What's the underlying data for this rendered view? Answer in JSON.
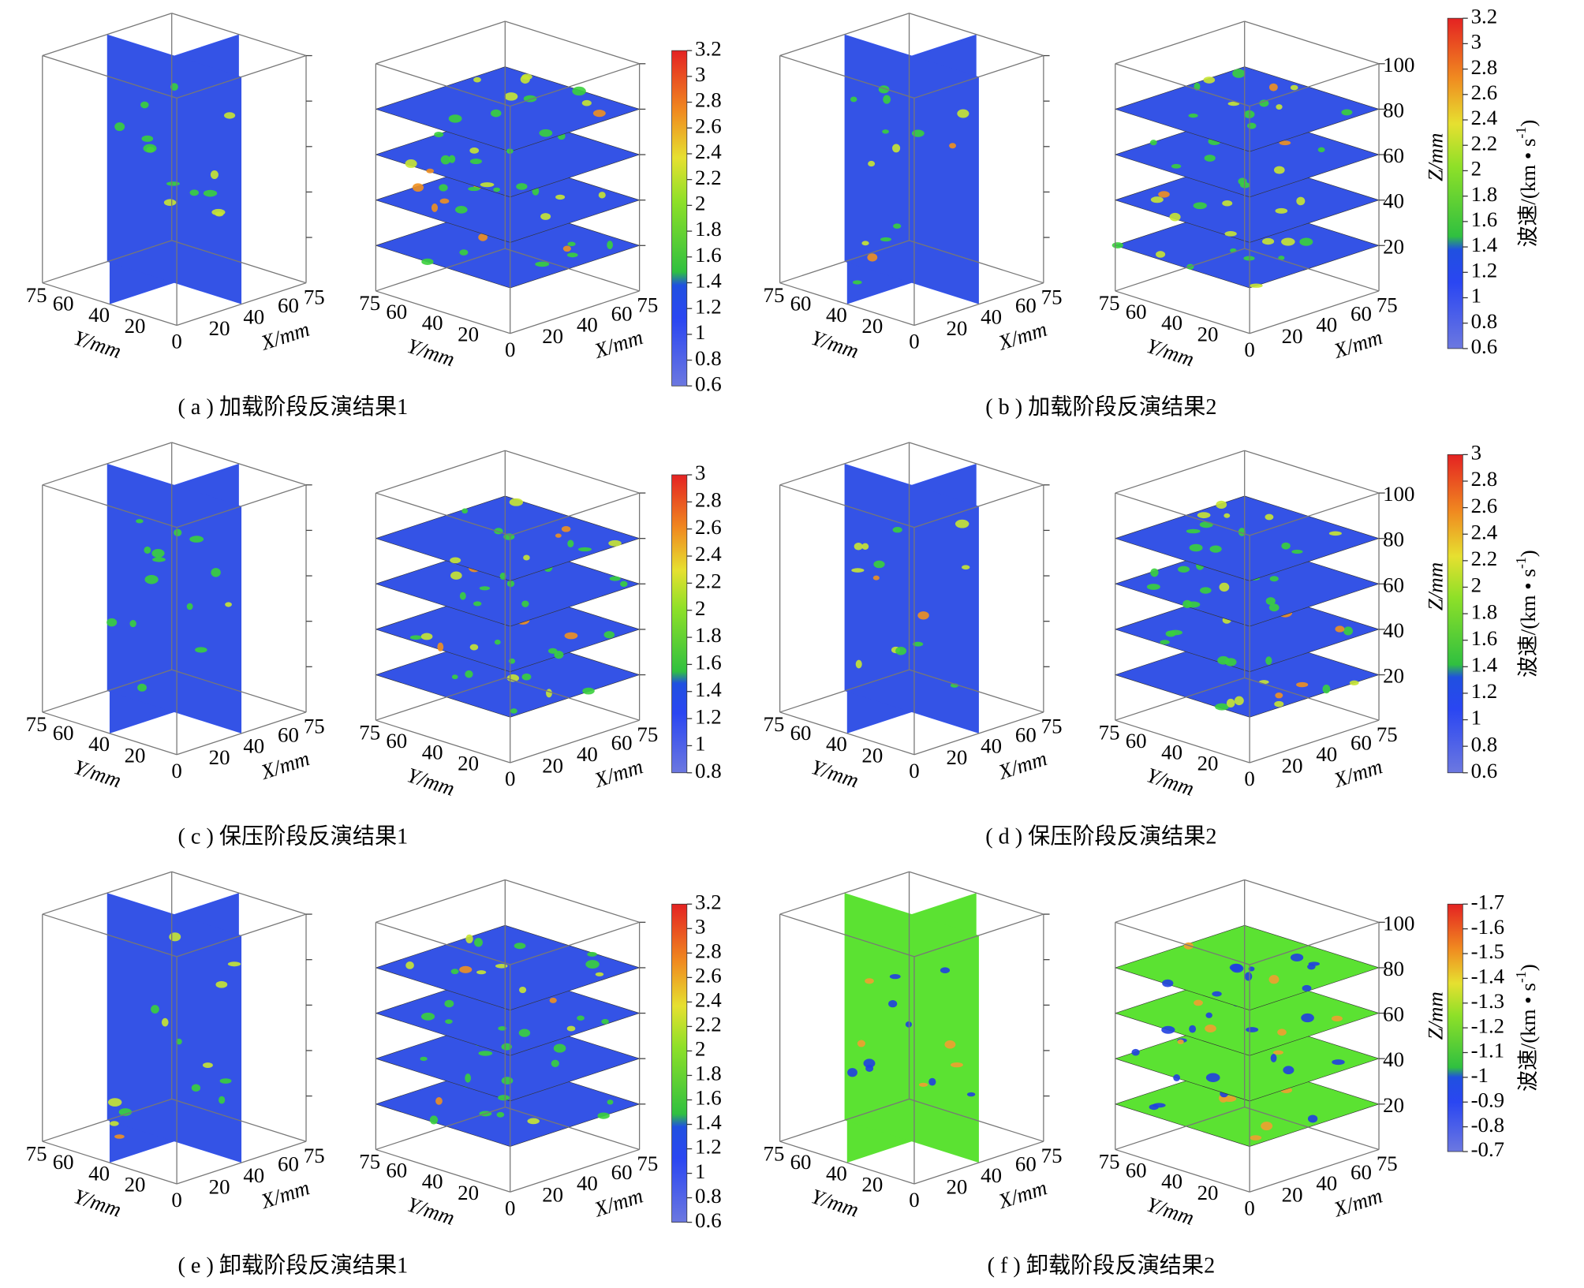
{
  "axis_labels": {
    "x": "X/mm",
    "y": "Y/mm",
    "z": "Z/mm"
  },
  "origin_tick": 0,
  "y_ticks": [
    75,
    60,
    40,
    20
  ],
  "x_ticks": [
    20,
    40,
    60,
    75
  ],
  "z_ticks": [
    20,
    40,
    60,
    80,
    100
  ],
  "colorbar_label": {
    "text": "波速/(km • s",
    "sup": "-1",
    "close": ")"
  },
  "panels": [
    {
      "caption": "( a ) 加载阶段反演结果1",
      "slice_color": "#3453e6",
      "colorbar_ticks": [
        0.6,
        0.8,
        1.0,
        1.2,
        1.4,
        1.6,
        1.8,
        2.0,
        2.2,
        2.4,
        2.6,
        2.8,
        3.0,
        3.2
      ]
    },
    {
      "caption": "( b ) 加载阶段反演结果2",
      "slice_color": "#3453e6",
      "colorbar_ticks": [
        0.6,
        0.8,
        1.0,
        1.2,
        1.4,
        1.6,
        1.8,
        2.0,
        2.2,
        2.4,
        2.6,
        2.8,
        3.0,
        3.2
      ]
    },
    {
      "caption": "( c ) 保压阶段反演结果1",
      "slice_color": "#3453e6",
      "colorbar_ticks": [
        0.8,
        1.0,
        1.2,
        1.4,
        1.6,
        1.8,
        2.0,
        2.2,
        2.4,
        2.6,
        2.8,
        3.0
      ]
    },
    {
      "caption": "( d ) 保压阶段反演结果2",
      "slice_color": "#3453e6",
      "colorbar_ticks": [
        0.6,
        0.8,
        1.0,
        1.2,
        1.4,
        1.6,
        1.8,
        2.0,
        2.2,
        2.4,
        2.6,
        2.8,
        3.0
      ]
    },
    {
      "caption": "( e ) 卸载阶段反演结果1",
      "slice_color": "#3453e6",
      "colorbar_ticks": [
        0.6,
        0.8,
        1.0,
        1.2,
        1.4,
        1.6,
        1.8,
        2.0,
        2.2,
        2.4,
        2.6,
        2.8,
        3.0,
        3.2
      ]
    },
    {
      "caption": "( f ) 卸载阶段反演结果2",
      "slice_color": "#5be232",
      "colorbar_ticks": [
        -0.7,
        -0.8,
        -0.9,
        -1.0,
        -1.1,
        -1.2,
        -1.3,
        -1.4,
        -1.5,
        -1.6,
        -1.7
      ]
    }
  ]
}
